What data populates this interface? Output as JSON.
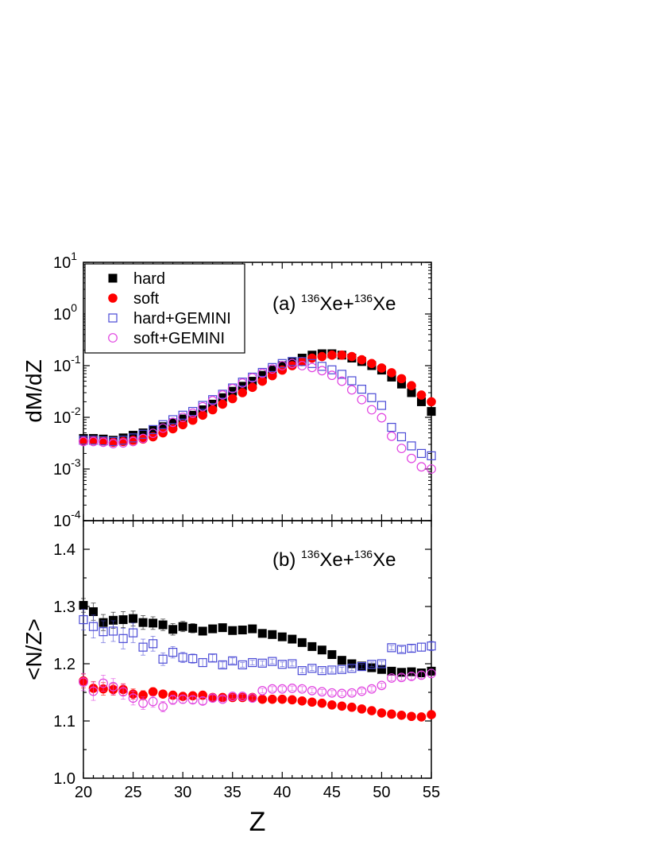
{
  "colors": {
    "hard": "#000000",
    "soft": "#ff0000",
    "hard_gemini": "#4a4ad6",
    "soft_gemini": "#e040e0"
  },
  "chart_data": [
    {
      "type": "scatter",
      "panel": "a",
      "panel_label": {
        "prefix": "(a) ",
        "mass1": "136",
        "el1": "Xe+",
        "mass2": "136",
        "el2": "Xe"
      },
      "ylabel": "dM/dZ",
      "xlabel": "",
      "xlim": [
        20,
        55
      ],
      "ylim": [
        0.0001,
        10
      ],
      "yscale": "log",
      "xticks": [
        "20",
        "25",
        "30",
        "35",
        "40",
        "45",
        "50",
        "55"
      ],
      "yticks": [
        {
          "base": "10",
          "exp": "-4"
        },
        {
          "base": "10",
          "exp": "-3"
        },
        {
          "base": "10",
          "exp": "-2"
        },
        {
          "base": "10",
          "exp": "-1"
        },
        {
          "base": "10",
          "exp": "0"
        },
        {
          "base": "10",
          "exp": "1"
        }
      ],
      "legend": {
        "position": "top-left",
        "entries": [
          "hard",
          "soft",
          "hard+GEMINI",
          "soft+GEMINI"
        ]
      },
      "series": [
        {
          "name": "hard",
          "marker": "square-filled",
          "x": [
            20,
            21,
            22,
            23,
            24,
            25,
            26,
            27,
            28,
            29,
            30,
            31,
            32,
            33,
            34,
            35,
            36,
            37,
            38,
            39,
            40,
            41,
            42,
            43,
            44,
            45,
            46,
            47,
            48,
            49,
            50,
            51,
            52,
            53,
            54,
            55
          ],
          "y": [
            0.0039,
            0.0039,
            0.0038,
            0.0036,
            0.004,
            0.0045,
            0.005,
            0.0057,
            0.0066,
            0.0078,
            0.0093,
            0.011,
            0.014,
            0.018,
            0.024,
            0.032,
            0.04,
            0.05,
            0.065,
            0.082,
            0.1,
            0.12,
            0.14,
            0.16,
            0.17,
            0.17,
            0.16,
            0.14,
            0.12,
            0.1,
            0.082,
            0.06,
            0.044,
            0.03,
            0.02,
            0.013
          ]
        },
        {
          "name": "soft",
          "marker": "circle-filled",
          "x": [
            20,
            21,
            22,
            23,
            24,
            25,
            26,
            27,
            28,
            29,
            30,
            31,
            32,
            33,
            34,
            35,
            36,
            37,
            38,
            39,
            40,
            41,
            42,
            43,
            44,
            45,
            46,
            47,
            48,
            49,
            50,
            51,
            52,
            53,
            54,
            55
          ],
          "y": [
            0.0035,
            0.0036,
            0.0035,
            0.0033,
            0.0034,
            0.0036,
            0.0038,
            0.0042,
            0.005,
            0.006,
            0.0072,
            0.0088,
            0.011,
            0.014,
            0.018,
            0.023,
            0.03,
            0.038,
            0.05,
            0.064,
            0.082,
            0.1,
            0.12,
            0.14,
            0.15,
            0.16,
            0.16,
            0.15,
            0.13,
            0.11,
            0.09,
            0.073,
            0.056,
            0.041,
            0.027,
            0.02
          ]
        },
        {
          "name": "hard+GEMINI",
          "marker": "square-open",
          "x": [
            20,
            21,
            22,
            23,
            24,
            25,
            26,
            27,
            28,
            29,
            30,
            31,
            32,
            33,
            34,
            35,
            36,
            37,
            38,
            39,
            40,
            41,
            42,
            43,
            44,
            45,
            46,
            47,
            48,
            49,
            50,
            51,
            52,
            53,
            54,
            55
          ],
          "y": [
            0.0036,
            0.0036,
            0.0035,
            0.0034,
            0.0036,
            0.004,
            0.0047,
            0.0058,
            0.0072,
            0.009,
            0.011,
            0.013,
            0.017,
            0.022,
            0.028,
            0.037,
            0.048,
            0.06,
            0.074,
            0.092,
            0.11,
            0.12,
            0.12,
            0.11,
            0.097,
            0.083,
            0.068,
            0.051,
            0.035,
            0.024,
            0.017,
            0.0064,
            0.0042,
            0.0028,
            0.002,
            0.0018
          ]
        },
        {
          "name": "soft+GEMINI",
          "marker": "circle-open",
          "x": [
            20,
            21,
            22,
            23,
            24,
            25,
            26,
            27,
            28,
            29,
            30,
            31,
            32,
            33,
            34,
            35,
            36,
            37,
            38,
            39,
            40,
            41,
            42,
            43,
            44,
            45,
            46,
            47,
            48,
            49,
            50,
            51,
            52,
            53,
            54,
            55
          ],
          "y": [
            0.0034,
            0.0034,
            0.0033,
            0.0031,
            0.0032,
            0.0034,
            0.0039,
            0.0049,
            0.0062,
            0.008,
            0.01,
            0.012,
            0.016,
            0.021,
            0.027,
            0.036,
            0.046,
            0.058,
            0.071,
            0.086,
            0.1,
            0.11,
            0.1,
            0.092,
            0.08,
            0.065,
            0.05,
            0.034,
            0.022,
            0.014,
            0.0098,
            0.0043,
            0.0025,
            0.0016,
            0.0011,
            0.001
          ]
        }
      ]
    },
    {
      "type": "scatter",
      "panel": "b",
      "panel_label": {
        "prefix": "(b) ",
        "mass1": "136",
        "el1": "Xe+",
        "mass2": "136",
        "el2": "Xe"
      },
      "ylabel": "<N/Z>",
      "xlabel": "Z",
      "xlim": [
        20,
        55
      ],
      "ylim": [
        1.0,
        1.45
      ],
      "xticks": [
        "20",
        "25",
        "30",
        "35",
        "40",
        "45",
        "50",
        "55"
      ],
      "yticks": [
        "1.0",
        "1.1",
        "1.2",
        "1.3",
        "1.4"
      ],
      "series": [
        {
          "name": "hard",
          "marker": "square-filled",
          "x": [
            20,
            21,
            22,
            23,
            24,
            25,
            26,
            27,
            28,
            29,
            30,
            31,
            32,
            33,
            34,
            35,
            36,
            37,
            38,
            39,
            40,
            41,
            42,
            43,
            44,
            45,
            46,
            47,
            48,
            49,
            50,
            51,
            52,
            53,
            54,
            55
          ],
          "y": [
            1.302,
            1.291,
            1.272,
            1.276,
            1.277,
            1.279,
            1.272,
            1.271,
            1.268,
            1.26,
            1.265,
            1.262,
            1.257,
            1.261,
            1.263,
            1.258,
            1.259,
            1.261,
            1.253,
            1.251,
            1.247,
            1.243,
            1.237,
            1.23,
            1.224,
            1.216,
            1.206,
            1.2,
            1.196,
            1.193,
            1.19,
            1.187,
            1.185,
            1.186,
            1.184,
            1.187
          ],
          "err": [
            0.012,
            0.015,
            0.014,
            0.014,
            0.014,
            0.013,
            0.012,
            0.011,
            0.01,
            0.01,
            0.009,
            0.008,
            0.007,
            0.006,
            0.005,
            0.005,
            0.004,
            0.004,
            0.003,
            0.003,
            0.003,
            0.003,
            0.002,
            0.002,
            0.002,
            0.002,
            0.002,
            0.002,
            0.002,
            0.003,
            0.003,
            0.004,
            0.004,
            0.005,
            0.006,
            0.007
          ]
        },
        {
          "name": "soft",
          "marker": "circle-filled",
          "x": [
            20,
            21,
            22,
            23,
            24,
            25,
            26,
            27,
            28,
            29,
            30,
            31,
            32,
            33,
            34,
            35,
            36,
            37,
            38,
            39,
            40,
            41,
            42,
            43,
            44,
            45,
            46,
            47,
            48,
            49,
            50,
            51,
            52,
            53,
            54,
            55
          ],
          "y": [
            1.17,
            1.157,
            1.156,
            1.155,
            1.155,
            1.147,
            1.145,
            1.151,
            1.147,
            1.145,
            1.143,
            1.144,
            1.145,
            1.141,
            1.141,
            1.141,
            1.141,
            1.141,
            1.138,
            1.138,
            1.138,
            1.137,
            1.135,
            1.133,
            1.131,
            1.128,
            1.126,
            1.124,
            1.121,
            1.118,
            1.114,
            1.112,
            1.11,
            1.108,
            1.107,
            1.111
          ],
          "err": [
            0.012,
            0.012,
            0.011,
            0.01,
            0.01,
            0.009,
            0.008,
            0.007,
            0.006,
            0.006,
            0.005,
            0.004,
            0.004,
            0.003,
            0.003,
            0.003,
            0.002,
            0.002,
            0.002,
            0.002,
            0.002,
            0.002,
            0.002,
            0.002,
            0.002,
            0.002,
            0.002,
            0.002,
            0.002,
            0.002,
            0.002,
            0.002,
            0.002,
            0.002,
            0.002,
            0.002
          ]
        },
        {
          "name": "hard+GEMINI",
          "marker": "square-open",
          "x": [
            20,
            21,
            22,
            23,
            24,
            25,
            26,
            27,
            28,
            29,
            30,
            31,
            32,
            33,
            34,
            35,
            36,
            37,
            38,
            39,
            40,
            41,
            42,
            43,
            44,
            45,
            46,
            47,
            48,
            49,
            50,
            51,
            52,
            53,
            54,
            55
          ],
          "y": [
            1.277,
            1.265,
            1.256,
            1.257,
            1.244,
            1.254,
            1.229,
            1.235,
            1.208,
            1.22,
            1.211,
            1.209,
            1.202,
            1.21,
            1.198,
            1.205,
            1.198,
            1.202,
            1.201,
            1.204,
            1.199,
            1.2,
            1.188,
            1.192,
            1.188,
            1.189,
            1.19,
            1.192,
            1.195,
            1.199,
            1.2,
            1.228,
            1.225,
            1.227,
            1.229,
            1.231
          ],
          "err": [
            0.018,
            0.02,
            0.019,
            0.018,
            0.018,
            0.017,
            0.014,
            0.013,
            0.011,
            0.01,
            0.009,
            0.008,
            0.007,
            0.006,
            0.005,
            0.005,
            0.004,
            0.004,
            0.004,
            0.004,
            0.004,
            0.004,
            0.004,
            0.004,
            0.004,
            0.004,
            0.004,
            0.004,
            0.004,
            0.004,
            0.004,
            0.004,
            0.005,
            0.006,
            0.007,
            0.008
          ]
        },
        {
          "name": "soft+GEMINI",
          "marker": "circle-open",
          "x": [
            20,
            21,
            22,
            23,
            24,
            25,
            26,
            27,
            28,
            29,
            30,
            31,
            32,
            33,
            34,
            35,
            36,
            37,
            38,
            39,
            40,
            41,
            42,
            43,
            44,
            45,
            46,
            47,
            48,
            49,
            50,
            51,
            52,
            53,
            54,
            55
          ],
          "y": [
            1.168,
            1.152,
            1.166,
            1.16,
            1.151,
            1.14,
            1.131,
            1.134,
            1.125,
            1.137,
            1.138,
            1.137,
            1.135,
            1.14,
            1.138,
            1.143,
            1.143,
            1.14,
            1.153,
            1.156,
            1.156,
            1.157,
            1.156,
            1.153,
            1.151,
            1.149,
            1.148,
            1.149,
            1.152,
            1.156,
            1.162,
            1.175,
            1.176,
            1.178,
            1.18,
            1.183
          ],
          "err": [
            0.015,
            0.016,
            0.014,
            0.014,
            0.013,
            0.012,
            0.011,
            0.01,
            0.009,
            0.008,
            0.007,
            0.006,
            0.006,
            0.005,
            0.005,
            0.004,
            0.004,
            0.004,
            0.004,
            0.004,
            0.004,
            0.004,
            0.004,
            0.004,
            0.004,
            0.004,
            0.004,
            0.004,
            0.004,
            0.004,
            0.004,
            0.005,
            0.005,
            0.006,
            0.006,
            0.007
          ]
        }
      ]
    }
  ]
}
